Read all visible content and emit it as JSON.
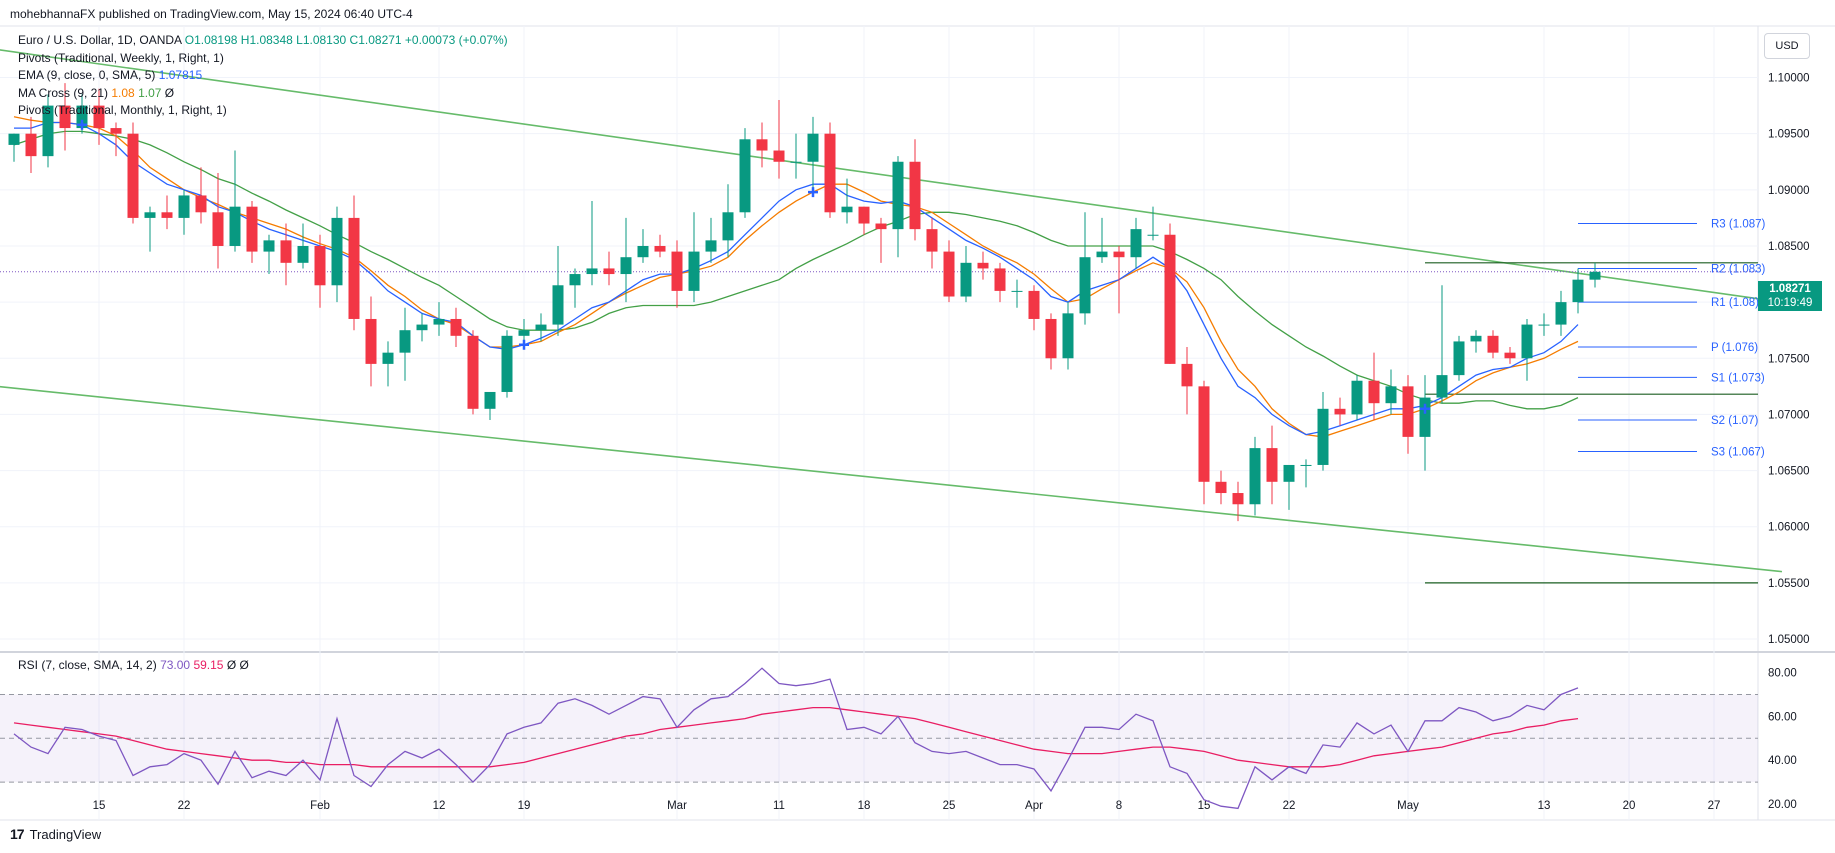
{
  "header": {
    "publisher": "mohebhannaFX published on TradingView.com, May 15, 2024 06:40 UTC-4"
  },
  "legend": {
    "symbol": "Euro / U.S. Dollar, 1D, OANDA",
    "ohlc_text": "O1.08198  H1.08348  L1.08130  C1.08271  +0.00073 (+0.07%)",
    "pivots_weekly": "Pivots (Traditional, Weekly, 1, Right, 1)",
    "ema_label": "EMA (9, close, 0, SMA, 5)",
    "ema_value": "1.07815",
    "ma_cross_label": "MA Cross (9, 21)",
    "ma_cross_fast": "1.08",
    "ma_cross_slow": "1.07",
    "ma_cross_extra": "Ø",
    "pivots_monthly": "Pivots (Traditional, Monthly, 1, Right, 1)"
  },
  "currency": "USD",
  "price_badge": {
    "price": "1.08271",
    "countdown": "10:19:49"
  },
  "rsi_legend": {
    "label": "RSI (7, close, SMA, 14, 2)",
    "rsi": "73.00",
    "ma": "59.15",
    "extra": "Ø  Ø"
  },
  "branding": "TradingView",
  "colors": {
    "up": "#089981",
    "down": "#f23645",
    "ema": "#2962ff",
    "fast_ma": "#f57c00",
    "slow_ma": "#43a047",
    "rsi": "#7e57c2",
    "rsi_ma": "#e91e63",
    "pivot": "#2962ff",
    "trend": "#66bb6a"
  },
  "chart_data": {
    "type": "candlestick",
    "symbol": "EUR/USD",
    "y_axis_ticks": [
      "1.10000",
      "1.09500",
      "1.09000",
      "1.08500",
      "1.08000",
      "1.07500",
      "1.07000",
      "1.06500",
      "1.06000",
      "1.05500",
      "1.05000"
    ],
    "ylim": [
      1.0492,
      1.1045
    ],
    "x_axis_ticks": [
      {
        "label": "15",
        "i": 5
      },
      {
        "label": "22",
        "i": 10
      },
      {
        "label": "Feb",
        "i": 18
      },
      {
        "label": "12",
        "i": 25
      },
      {
        "label": "19",
        "i": 30
      },
      {
        "label": "Mar",
        "i": 39
      },
      {
        "label": "11",
        "i": 45
      },
      {
        "label": "18",
        "i": 50
      },
      {
        "label": "25",
        "i": 55
      },
      {
        "label": "Apr",
        "i": 60
      },
      {
        "label": "8",
        "i": 65
      },
      {
        "label": "15",
        "i": 70
      },
      {
        "label": "22",
        "i": 75
      },
      {
        "label": "May",
        "i": 82
      },
      {
        "label": "13",
        "i": 90
      },
      {
        "label": "20",
        "i": 95
      },
      {
        "label": "27",
        "i": 100
      }
    ],
    "candles": [
      [
        1.094,
        1.095,
        1.0925,
        1.095
      ],
      [
        1.095,
        1.0965,
        1.0915,
        1.093
      ],
      [
        1.093,
        1.0985,
        1.092,
        1.0975
      ],
      [
        1.0975,
        1.0995,
        1.0935,
        1.0955
      ],
      [
        1.0955,
        1.0985,
        1.095,
        1.0975
      ],
      [
        1.0975,
        1.099,
        1.094,
        1.0955
      ],
      [
        1.0955,
        1.096,
        1.093,
        1.095
      ],
      [
        1.095,
        1.096,
        1.087,
        1.0875
      ],
      [
        1.0875,
        1.0885,
        1.0845,
        1.088
      ],
      [
        1.088,
        1.0895,
        1.0865,
        1.0875
      ],
      [
        1.0875,
        1.09,
        1.086,
        1.0895
      ],
      [
        1.0895,
        1.092,
        1.087,
        1.088
      ],
      [
        1.088,
        1.0915,
        1.083,
        1.085
      ],
      [
        1.085,
        1.0935,
        1.0845,
        1.0885
      ],
      [
        1.0885,
        1.089,
        1.0835,
        1.0845
      ],
      [
        1.0845,
        1.086,
        1.0825,
        1.0855
      ],
      [
        1.0855,
        1.087,
        1.0815,
        1.0835
      ],
      [
        1.0835,
        1.087,
        1.083,
        1.085
      ],
      [
        1.085,
        1.086,
        1.0795,
        1.0815
      ],
      [
        1.0815,
        1.0885,
        1.08,
        1.0875
      ],
      [
        1.0875,
        1.0895,
        1.0775,
        1.0785
      ],
      [
        1.0785,
        1.0805,
        1.0725,
        1.0745
      ],
      [
        1.0745,
        1.0765,
        1.0725,
        1.0755
      ],
      [
        1.0755,
        1.0795,
        1.073,
        1.0775
      ],
      [
        1.0775,
        1.079,
        1.0765,
        1.078
      ],
      [
        1.078,
        1.08,
        1.077,
        1.0785
      ],
      [
        1.0785,
        1.0795,
        1.076,
        1.077
      ],
      [
        1.077,
        1.0775,
        1.07,
        1.0705
      ],
      [
        1.0705,
        1.072,
        1.0695,
        1.072
      ],
      [
        1.072,
        1.0775,
        1.0715,
        1.077
      ],
      [
        1.077,
        1.0785,
        1.076,
        1.0775
      ],
      [
        1.0775,
        1.079,
        1.0765,
        1.078
      ],
      [
        1.078,
        1.085,
        1.077,
        1.0815
      ],
      [
        1.0815,
        1.083,
        1.0795,
        1.0825
      ],
      [
        1.0825,
        1.089,
        1.0815,
        1.083
      ],
      [
        1.083,
        1.0845,
        1.0815,
        1.0825
      ],
      [
        1.0825,
        1.0875,
        1.08,
        1.084
      ],
      [
        1.084,
        1.0865,
        1.0835,
        1.085
      ],
      [
        1.085,
        1.086,
        1.084,
        1.0845
      ],
      [
        1.0845,
        1.0855,
        1.0795,
        1.081
      ],
      [
        1.081,
        1.088,
        1.08,
        1.0845
      ],
      [
        1.0845,
        1.0875,
        1.0835,
        1.0855
      ],
      [
        1.0855,
        1.0905,
        1.084,
        1.088
      ],
      [
        1.088,
        1.0955,
        1.0875,
        1.0945
      ],
      [
        1.0945,
        1.096,
        1.092,
        1.0935
      ],
      [
        1.0935,
        1.098,
        1.091,
        1.0925
      ],
      [
        1.0925,
        1.095,
        1.091,
        1.0925
      ],
      [
        1.0925,
        1.0965,
        1.0895,
        1.095
      ],
      [
        1.095,
        1.096,
        1.0875,
        1.088
      ],
      [
        1.088,
        1.091,
        1.087,
        1.0885
      ],
      [
        1.0885,
        1.0885,
        1.086,
        1.087
      ],
      [
        1.087,
        1.0875,
        1.0835,
        1.0865
      ],
      [
        1.0865,
        1.093,
        1.084,
        1.0925
      ],
      [
        1.0925,
        1.0945,
        1.0855,
        1.0865
      ],
      [
        1.0865,
        1.0875,
        1.083,
        1.0845
      ],
      [
        1.0845,
        1.0855,
        1.08,
        1.0805
      ],
      [
        1.0805,
        1.085,
        1.08,
        1.0835
      ],
      [
        1.0835,
        1.0845,
        1.082,
        1.083
      ],
      [
        1.083,
        1.0835,
        1.08,
        1.081
      ],
      [
        1.081,
        1.082,
        1.0795,
        1.081
      ],
      [
        1.081,
        1.0815,
        1.0775,
        1.0785
      ],
      [
        1.0785,
        1.079,
        1.074,
        1.075
      ],
      [
        1.075,
        1.08,
        1.074,
        1.079
      ],
      [
        1.079,
        1.088,
        1.078,
        1.084
      ],
      [
        1.084,
        1.0875,
        1.0835,
        1.0845
      ],
      [
        1.0845,
        1.085,
        1.079,
        1.084
      ],
      [
        1.084,
        1.0875,
        1.083,
        1.0865
      ],
      [
        1.086,
        1.0885,
        1.0855,
        1.086
      ],
      [
        1.086,
        1.087,
        1.0745,
        1.0745
      ],
      [
        1.0745,
        1.076,
        1.07,
        1.0725
      ],
      [
        1.0725,
        1.073,
        1.062,
        1.064
      ],
      [
        1.064,
        1.065,
        1.062,
        1.063
      ],
      [
        1.063,
        1.064,
        1.0605,
        1.062
      ],
      [
        1.062,
        1.068,
        1.061,
        1.067
      ],
      [
        1.067,
        1.069,
        1.062,
        1.064
      ],
      [
        1.064,
        1.0655,
        1.0615,
        1.0655
      ],
      [
        1.0655,
        1.066,
        1.0635,
        1.0655
      ],
      [
        1.0655,
        1.072,
        1.065,
        1.0705
      ],
      [
        1.0705,
        1.0715,
        1.069,
        1.07
      ],
      [
        1.07,
        1.0735,
        1.0695,
        1.073
      ],
      [
        1.073,
        1.0755,
        1.0695,
        1.071
      ],
      [
        1.071,
        1.074,
        1.07,
        1.0725
      ],
      [
        1.0725,
        1.0735,
        1.0665,
        1.068
      ],
      [
        1.068,
        1.0735,
        1.065,
        1.0715
      ],
      [
        1.0715,
        1.0815,
        1.071,
        1.0735
      ],
      [
        1.0735,
        1.077,
        1.073,
        1.0765
      ],
      [
        1.0765,
        1.0775,
        1.0755,
        1.077
      ],
      [
        1.077,
        1.0775,
        1.075,
        1.0755
      ],
      [
        1.0755,
        1.076,
        1.0745,
        1.075
      ],
      [
        1.075,
        1.0785,
        1.073,
        1.078
      ],
      [
        1.078,
        1.079,
        1.077,
        1.078
      ],
      [
        1.078,
        1.081,
        1.077,
        1.08
      ],
      [
        1.08,
        1.083,
        1.079,
        1.082
      ],
      [
        1.082,
        1.0835,
        1.0813,
        1.0827
      ]
    ],
    "indicators": {
      "ema_9": [
        1.0955,
        1.0955,
        1.096,
        1.096,
        1.0958,
        1.095,
        1.094,
        1.0925,
        1.0915,
        1.0905,
        1.09,
        1.0895,
        1.0885,
        1.088,
        1.0872,
        1.0865,
        1.086,
        1.0855,
        1.085,
        1.0845,
        1.0838,
        1.0825,
        1.081,
        1.08,
        1.079,
        1.0785,
        1.0782,
        1.077,
        1.076,
        1.0758,
        1.0762,
        1.0768,
        1.0775,
        1.0785,
        1.0795,
        1.08,
        1.081,
        1.082,
        1.0825,
        1.0825,
        1.083,
        1.0837,
        1.0845,
        1.086,
        1.0875,
        1.089,
        1.09,
        1.0905,
        1.0905,
        1.0895,
        1.089,
        1.0888,
        1.089,
        1.0885,
        1.0875,
        1.0865,
        1.0855,
        1.0848,
        1.084,
        1.083,
        1.082,
        1.0805,
        1.08,
        1.081,
        1.0815,
        1.082,
        1.083,
        1.084,
        1.083,
        1.081,
        1.078,
        1.075,
        1.0725,
        1.0715,
        1.07,
        1.069,
        1.0682,
        1.0685,
        1.069,
        1.0695,
        1.07,
        1.0705,
        1.0705,
        1.0708,
        1.0715,
        1.0725,
        1.0735,
        1.074,
        1.0742,
        1.075,
        1.0755,
        1.0765,
        1.078
      ],
      "ma_fast_9": [
        1.0965,
        1.0962,
        1.096,
        1.096,
        1.0958,
        1.0955,
        1.0948,
        1.0935,
        1.092,
        1.091,
        1.09,
        1.0893,
        1.0887,
        1.088,
        1.0875,
        1.087,
        1.0865,
        1.0858,
        1.0852,
        1.0847,
        1.084,
        1.0828,
        1.0815,
        1.0805,
        1.0793,
        1.0785,
        1.078,
        1.077,
        1.076,
        1.076,
        1.0762,
        1.0765,
        1.0773,
        1.078,
        1.079,
        1.08,
        1.0808,
        1.0815,
        1.0822,
        1.0825,
        1.0828,
        1.0832,
        1.084,
        1.0855,
        1.0868,
        1.088,
        1.089,
        1.0898,
        1.0905,
        1.0905,
        1.0898,
        1.089,
        1.0887,
        1.0885,
        1.088,
        1.087,
        1.086,
        1.085,
        1.0842,
        1.0835,
        1.0825,
        1.0812,
        1.08,
        1.0803,
        1.0812,
        1.082,
        1.0828,
        1.0835,
        1.083,
        1.0818,
        1.0795,
        1.0765,
        1.074,
        1.0725,
        1.0705,
        1.0692,
        1.0682,
        1.068,
        1.0685,
        1.069,
        1.0695,
        1.07,
        1.07,
        1.0705,
        1.0712,
        1.072,
        1.073,
        1.0737,
        1.0742,
        1.0745,
        1.075,
        1.0758,
        1.0765
      ],
      "ma_slow_21": [
        1.094,
        1.0945,
        1.095,
        1.0952,
        1.0952,
        1.095,
        1.0948,
        1.0945,
        1.094,
        1.0933,
        1.0925,
        1.0918,
        1.091,
        1.0905,
        1.0897,
        1.089,
        1.0882,
        1.0875,
        1.0868,
        1.086,
        1.0853,
        1.0845,
        1.0838,
        1.083,
        1.0822,
        1.0815,
        1.0805,
        1.0795,
        1.0785,
        1.0778,
        1.0775,
        1.0775,
        1.0775,
        1.0777,
        1.0782,
        1.079,
        1.0795,
        1.0797,
        1.0797,
        1.0797,
        1.0797,
        1.08,
        1.0805,
        1.081,
        1.0815,
        1.082,
        1.083,
        1.0838,
        1.0845,
        1.0852,
        1.086,
        1.0867,
        1.0872,
        1.0878,
        1.088,
        1.088,
        1.0878,
        1.0875,
        1.0872,
        1.0868,
        1.0862,
        1.0855,
        1.085,
        1.085,
        1.085,
        1.085,
        1.085,
        1.085,
        1.0845,
        1.0838,
        1.083,
        1.082,
        1.0805,
        1.0792,
        1.078,
        1.077,
        1.076,
        1.0752,
        1.0743,
        1.0735,
        1.073,
        1.0725,
        1.0718,
        1.0713,
        1.071,
        1.071,
        1.0712,
        1.0712,
        1.0708,
        1.0705,
        1.0705,
        1.0708,
        1.0715
      ]
    },
    "weekly_pivots": [
      {
        "label": "R3 (1.087)",
        "value": 1.087
      },
      {
        "label": "R2 (1.083)",
        "value": 1.083
      },
      {
        "label": "R1 (1.08)",
        "value": 1.08
      },
      {
        "label": "P (1.076)",
        "value": 1.076
      },
      {
        "label": "S1 (1.073)",
        "value": 1.0733
      },
      {
        "label": "S2 (1.07)",
        "value": 1.0695
      },
      {
        "label": "S3 (1.067)",
        "value": 1.0667
      }
    ],
    "monthly_pivot_lines": [
      1.0835,
      1.0718,
      1.055
    ],
    "trendlines": [
      {
        "from": {
          "i": -1,
          "v": 1.1025
        },
        "to": {
          "i": 104,
          "v": 1.08
        }
      },
      {
        "from": {
          "i": -1,
          "v": 1.0725
        },
        "to": {
          "i": 104,
          "v": 1.056
        }
      }
    ],
    "current_price": 1.08271,
    "rsi": {
      "label": "RSI (7, close, SMA, 14, 2)",
      "axis_ticks": [
        "80.00",
        "60.00",
        "40.00",
        "20.00"
      ],
      "ylim": [
        15,
        88
      ],
      "bands": [
        70,
        50,
        30
      ],
      "rsi_values": [
        52,
        46,
        43,
        55,
        54,
        51,
        49,
        33,
        37,
        38,
        43,
        40,
        29,
        44,
        32,
        35,
        33,
        40,
        31,
        59,
        33,
        28,
        38,
        44,
        41,
        45,
        38,
        30,
        38,
        52,
        55,
        57,
        66,
        68,
        65,
        61,
        65,
        69,
        68,
        55,
        63,
        68,
        69,
        75,
        82,
        75,
        74,
        75,
        77,
        54,
        55,
        52,
        60,
        48,
        44,
        43,
        44,
        41,
        38,
        38,
        36,
        26,
        40,
        55,
        55,
        54,
        61,
        58,
        37,
        34,
        22,
        19,
        18,
        37,
        31,
        37,
        34,
        47,
        46,
        57,
        52,
        56,
        44,
        58,
        58,
        64,
        62,
        58,
        60,
        65,
        63,
        70,
        73
      ],
      "rsi_ma_values": [
        57,
        56,
        55,
        54,
        53,
        52,
        51,
        49,
        47,
        45,
        44,
        43,
        42,
        41,
        40,
        40,
        39,
        39,
        38,
        38,
        38,
        37,
        37,
        37,
        37,
        37,
        37,
        37,
        37,
        38,
        39,
        41,
        43,
        45,
        47,
        49,
        51,
        52,
        54,
        55,
        56,
        57,
        58,
        59,
        61,
        62,
        63,
        64,
        64,
        63,
        62,
        61,
        60,
        59,
        57,
        55,
        53,
        51,
        49,
        47,
        45,
        44,
        43,
        43,
        43,
        44,
        45,
        46,
        46,
        45,
        44,
        42,
        40,
        39,
        38,
        37,
        37,
        37,
        38,
        40,
        42,
        43,
        44,
        45,
        46,
        48,
        50,
        52,
        53,
        55,
        56,
        58,
        59
      ]
    }
  }
}
